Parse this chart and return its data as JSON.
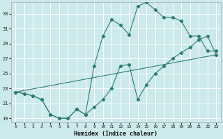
{
  "title": "",
  "xlabel": "Humidex (Indice chaleur)",
  "ylabel": "",
  "bg_color": "#cce9ec",
  "grid_color": "#b0d8dc",
  "line_color": "#2e7d72",
  "xlim": [
    -0.5,
    23.5
  ],
  "ylim": [
    18.5,
    34.5
  ],
  "yticks": [
    19,
    21,
    23,
    25,
    27,
    29,
    31,
    33
  ],
  "xticks": [
    0,
    1,
    2,
    3,
    4,
    5,
    6,
    7,
    8,
    9,
    10,
    11,
    12,
    13,
    14,
    15,
    16,
    17,
    18,
    19,
    20,
    21,
    22,
    23
  ],
  "series1_x": [
    0,
    1,
    2,
    3,
    4,
    5,
    6,
    7,
    8,
    9,
    10,
    11,
    12,
    13,
    14,
    15,
    16,
    17,
    18,
    19,
    20,
    21,
    22,
    23
  ],
  "series1_y": [
    22.5,
    22.3,
    22.0,
    21.5,
    19.5,
    19.0,
    19.0,
    20.2,
    19.5,
    20.5,
    21.5,
    23.0,
    26.0,
    26.2,
    21.5,
    23.5,
    25.0,
    26.0,
    27.0,
    27.8,
    28.5,
    29.5,
    30.0,
    27.5
  ],
  "series2_x": [
    0,
    1,
    2,
    3,
    4,
    5,
    6,
    7,
    8,
    9,
    10,
    11,
    12,
    13,
    14,
    15,
    16,
    17,
    18,
    19,
    20,
    21,
    22,
    23
  ],
  "series2_y": [
    22.5,
    22.3,
    22.0,
    21.5,
    19.5,
    19.0,
    19.0,
    20.2,
    19.5,
    26.0,
    30.0,
    32.2,
    31.5,
    30.2,
    34.0,
    34.5,
    33.5,
    32.5,
    32.5,
    32.0,
    30.0,
    30.0,
    28.0,
    28.0
  ],
  "series3_x": [
    0,
    23
  ],
  "series3_y": [
    22.5,
    27.5
  ],
  "figsize": [
    3.2,
    2.0
  ],
  "dpi": 100
}
